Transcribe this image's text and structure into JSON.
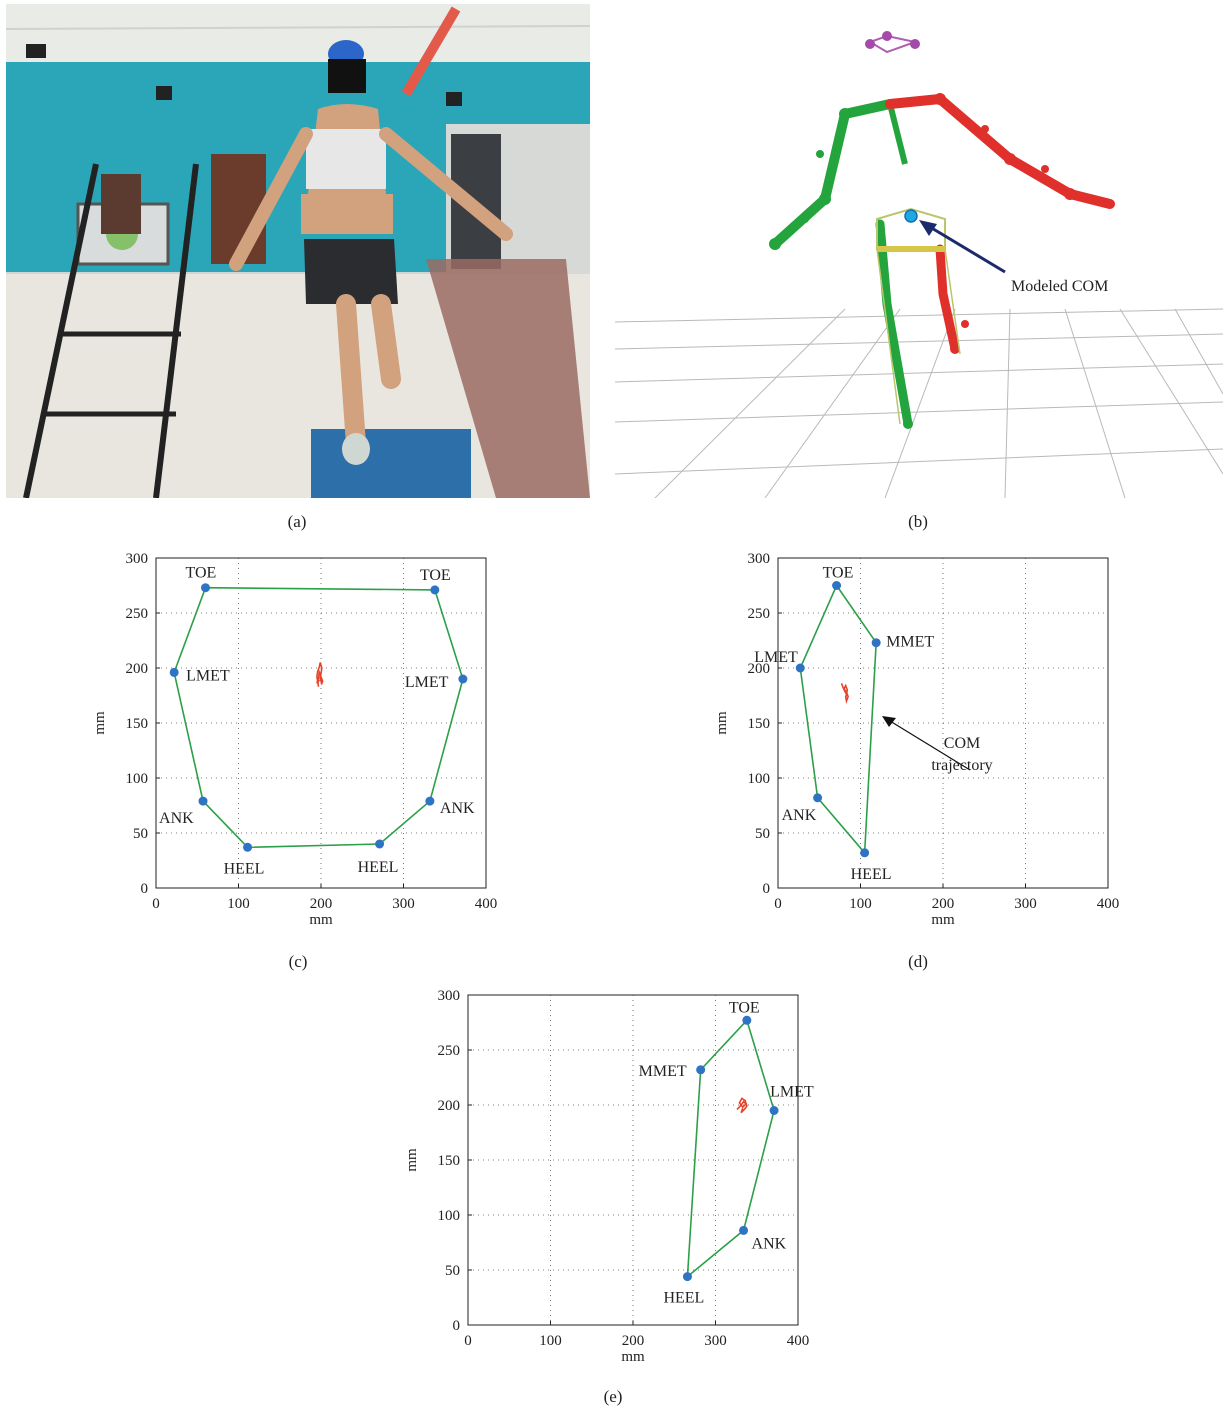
{
  "panels": {
    "a": {
      "caption": "(a)"
    },
    "b": {
      "caption": "(b)",
      "annotation": "Modeled COM"
    },
    "c": {
      "caption": "(c)"
    },
    "d": {
      "caption": "(d)",
      "annotation": "COM\ntrajectory"
    },
    "e": {
      "caption": "(e)"
    }
  },
  "colors": {
    "polygon": "#2ca048",
    "marker": "#2f73c4",
    "com": "#e8432a",
    "skeleton_left": "#23a43c",
    "skeleton_right": "#e0302b"
  },
  "chart_data": [
    {
      "id": "c",
      "type": "scatter",
      "xlabel": "mm",
      "ylabel": "mm",
      "xlim": [
        0,
        400
      ],
      "ylim": [
        0,
        300
      ],
      "xticks": [
        0,
        100,
        200,
        300,
        400
      ],
      "yticks": [
        0,
        50,
        100,
        150,
        200,
        250,
        300
      ],
      "grid": true,
      "points": [
        {
          "label": "TOE",
          "x": 60,
          "y": 273
        },
        {
          "label": "TOE",
          "x": 338,
          "y": 271
        },
        {
          "label": "LMET",
          "x": 372,
          "y": 190
        },
        {
          "label": "ANK",
          "x": 332,
          "y": 79
        },
        {
          "label": "HEEL",
          "x": 271,
          "y": 40
        },
        {
          "label": "HEEL",
          "x": 111,
          "y": 37
        },
        {
          "label": "ANK",
          "x": 57,
          "y": 79
        },
        {
          "label": "LMET",
          "x": 22,
          "y": 196
        }
      ],
      "com_trajectory": [
        [
          197,
          183
        ],
        [
          196,
          188
        ],
        [
          195,
          192
        ],
        [
          196,
          197
        ],
        [
          198,
          201
        ],
        [
          199,
          205
        ],
        [
          201,
          200
        ],
        [
          200,
          195
        ],
        [
          199,
          190
        ],
        [
          201,
          186
        ],
        [
          202,
          188
        ],
        [
          200,
          192
        ],
        [
          198,
          196
        ],
        [
          197,
          191
        ],
        [
          195,
          186
        ],
        [
          198,
          189
        ]
      ]
    },
    {
      "id": "d",
      "type": "scatter",
      "xlabel": "mm",
      "ylabel": "mm",
      "xlim": [
        0,
        400
      ],
      "ylim": [
        0,
        300
      ],
      "xticks": [
        0,
        100,
        200,
        300,
        400
      ],
      "yticks": [
        0,
        50,
        100,
        150,
        200,
        250,
        300
      ],
      "grid": true,
      "points": [
        {
          "label": "TOE",
          "x": 71,
          "y": 275
        },
        {
          "label": "MMET",
          "x": 119,
          "y": 223
        },
        {
          "label": "HEEL",
          "x": 105,
          "y": 32
        },
        {
          "label": "ANK",
          "x": 48,
          "y": 82
        },
        {
          "label": "LMET",
          "x": 27,
          "y": 200
        }
      ],
      "com_trajectory": [
        [
          77,
          186
        ],
        [
          79,
          182
        ],
        [
          81,
          179
        ],
        [
          83,
          176
        ],
        [
          84,
          180
        ],
        [
          82,
          184
        ],
        [
          80,
          181
        ],
        [
          83,
          178
        ],
        [
          85,
          174
        ],
        [
          83,
          170
        ],
        [
          82,
          174
        ],
        [
          84,
          177
        ]
      ]
    },
    {
      "id": "e",
      "type": "scatter",
      "xlabel": "mm",
      "ylabel": "mm",
      "xlim": [
        0,
        400
      ],
      "ylim": [
        0,
        300
      ],
      "xticks": [
        0,
        100,
        200,
        300,
        400
      ],
      "yticks": [
        0,
        50,
        100,
        150,
        200,
        250,
        300
      ],
      "grid": true,
      "points": [
        {
          "label": "TOE",
          "x": 338,
          "y": 277
        },
        {
          "label": "LMET",
          "x": 371,
          "y": 195
        },
        {
          "label": "ANK",
          "x": 334,
          "y": 86
        },
        {
          "label": "HEEL",
          "x": 266,
          "y": 44
        },
        {
          "label": "MMET",
          "x": 282,
          "y": 232
        }
      ],
      "com_trajectory": [
        [
          326,
          196
        ],
        [
          330,
          199
        ],
        [
          334,
          203
        ],
        [
          337,
          201
        ],
        [
          333,
          198
        ],
        [
          329,
          202
        ],
        [
          332,
          206
        ],
        [
          336,
          204
        ],
        [
          338,
          199
        ],
        [
          335,
          196
        ],
        [
          331,
          193
        ],
        [
          333,
          197
        ]
      ]
    }
  ]
}
